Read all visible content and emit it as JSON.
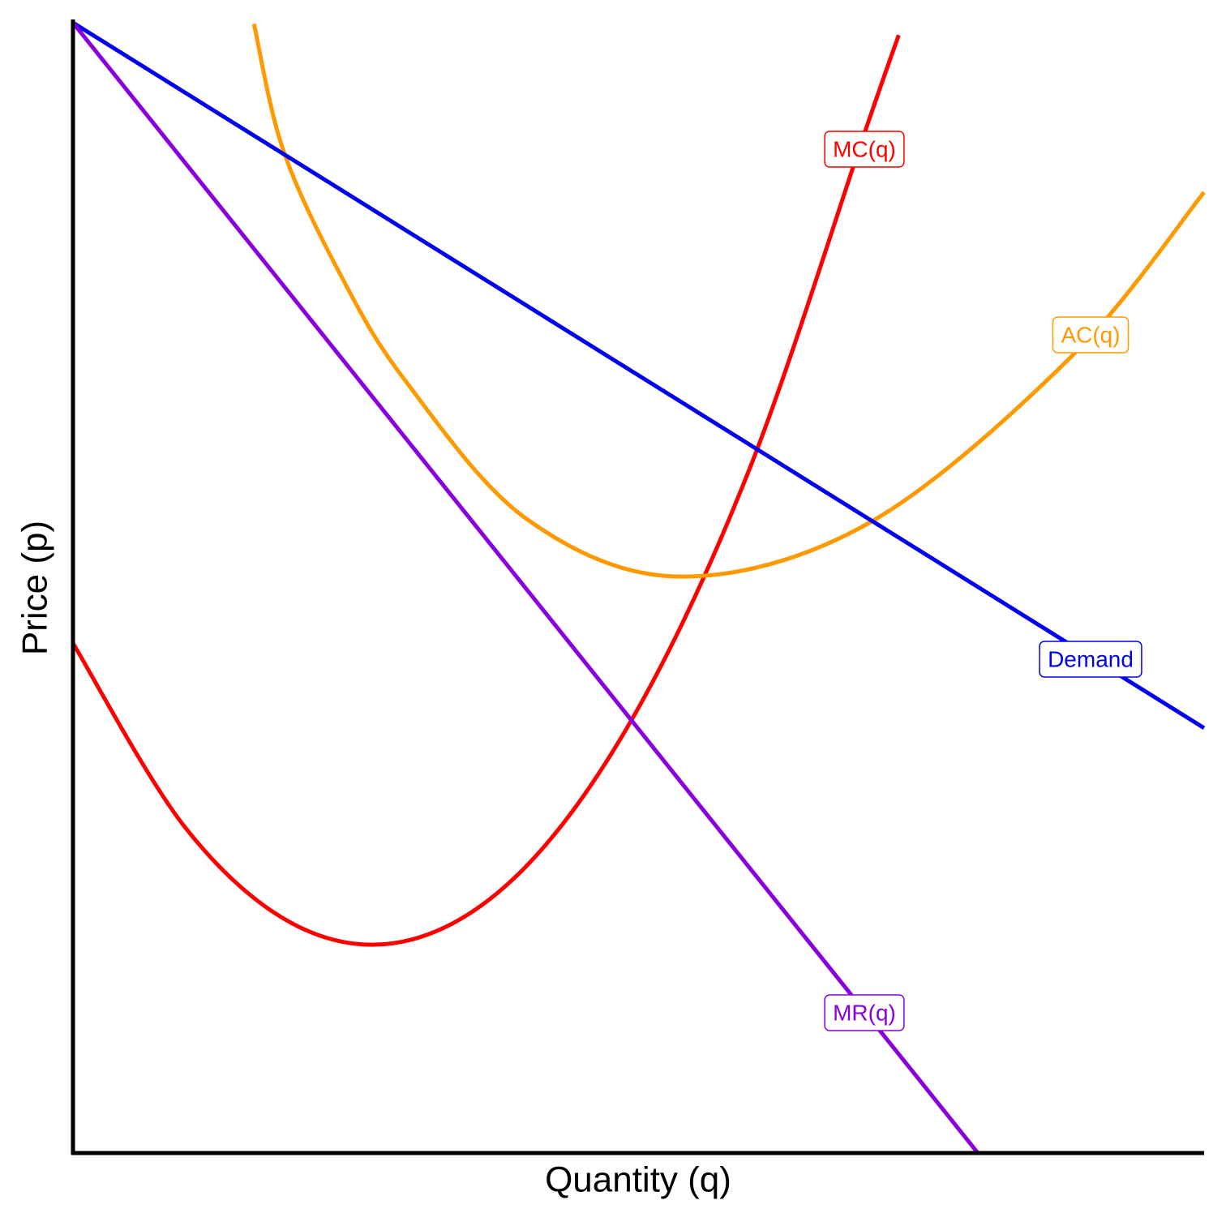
{
  "chart_data": {
    "type": "line",
    "x_label": "Quantity (q)",
    "y_label": "Price (p)",
    "xlim": [
      0,
      10
    ],
    "ylim": [
      0,
      10
    ],
    "series": [
      {
        "name": "MC(q)",
        "color": "#ff0000",
        "x": [
          0,
          1,
          2,
          3,
          4,
          5,
          6,
          7,
          7.3
        ],
        "values": [
          4.51,
          2.87,
          2.0,
          1.89,
          2.53,
          3.94,
          6.1,
          9.03,
          9.89
        ]
      },
      {
        "name": "AC(q)",
        "color": "#ff9900",
        "x": [
          1.6,
          1.86,
          2.37,
          2.94,
          4.01,
          5.36,
          7.03,
          8.82,
          10
        ],
        "values": [
          9.99,
          8.87,
          7.76,
          6.83,
          5.61,
          5.1,
          5.57,
          7.04,
          8.5
        ]
      },
      {
        "name": "Demand",
        "color": "#0000ee",
        "x": [
          0,
          10
        ],
        "values": [
          10,
          3.76
        ]
      },
      {
        "name": "MR(q)",
        "color": "#8800dd",
        "x": [
          0,
          8
        ],
        "values": [
          10,
          0
        ]
      }
    ]
  }
}
